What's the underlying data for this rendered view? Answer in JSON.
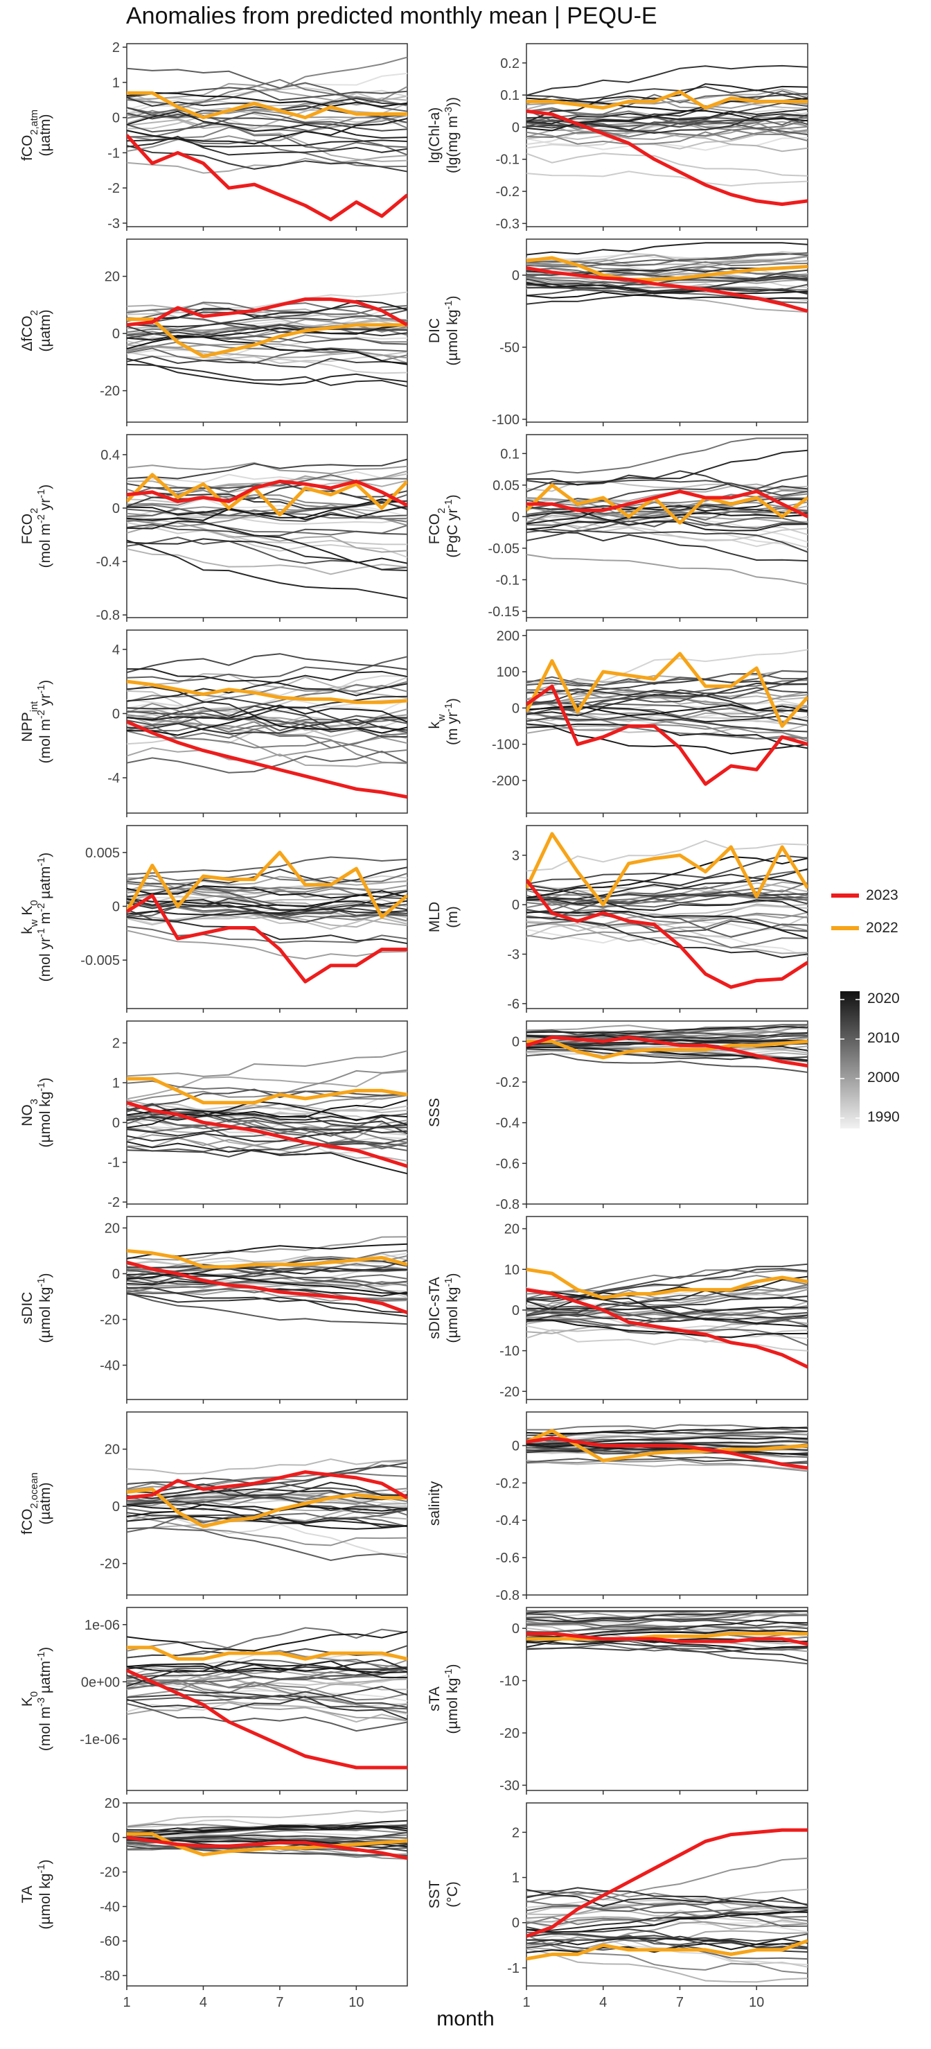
{
  "title": "Anomalies from predicted monthly mean | PEQU-E",
  "xlabel": "month",
  "x_ticks": [
    1,
    4,
    7,
    10
  ],
  "legend": {
    "highlight": [
      {
        "label": "2023",
        "color": "#ee1c1c"
      },
      {
        "label": "2022",
        "color": "#f7a418"
      }
    ],
    "gradient": {
      "labels": [
        "2020",
        "2010",
        "2000",
        "1990"
      ],
      "low_color": "#f2f2f2",
      "high_color": "#111111"
    }
  },
  "chart_data": [
    {
      "name": "fco2atm",
      "ylabel_html": "fCO<tspan baseline-shift='sub' font-size='70%'>2,atm</tspan>",
      "unit_html": "(µatm)",
      "ylim": [
        -3.1,
        2.1
      ],
      "yticks": [
        2,
        1,
        0,
        -1,
        -2,
        -3
      ],
      "s2023": [
        -0.5,
        -1.3,
        -1.0,
        -1.3,
        -2.0,
        -1.9,
        -2.2,
        -2.5,
        -2.9,
        -2.4,
        -2.8,
        -2.2
      ],
      "s2022": [
        0.7,
        0.7,
        0.3,
        0.0,
        0.2,
        0.4,
        0.2,
        0.0,
        0.3,
        0.1,
        0.1,
        0.1
      ],
      "spread": 0.9,
      "type": "line"
    },
    {
      "name": "chla",
      "ylabel_html": "lg(Chl-a)",
      "unit_html": "(lg(mg m<tspan baseline-shift='super' font-size='70%'>-3</tspan>))",
      "ylim": [
        -0.31,
        0.26
      ],
      "yticks": [
        0.2,
        0.1,
        0.0,
        -0.1,
        -0.2,
        -0.3
      ],
      "s2023": [
        0.05,
        0.04,
        0.01,
        -0.02,
        -0.05,
        -0.1,
        -0.14,
        -0.18,
        -0.21,
        -0.23,
        -0.24,
        -0.23
      ],
      "s2022": [
        0.08,
        0.08,
        0.07,
        0.06,
        0.08,
        0.08,
        0.11,
        0.06,
        0.09,
        0.08,
        0.08,
        0.08
      ],
      "spread": 0.09,
      "type": "line"
    },
    {
      "name": "dfco2",
      "ylabel_html": "ΔfCO<tspan baseline-shift='sub' font-size='70%'>2</tspan>",
      "unit_html": "(µatm)",
      "ylim": [
        -31,
        33
      ],
      "yticks": [
        20,
        0,
        -20
      ],
      "s2023": [
        3,
        4,
        9,
        6,
        7,
        8,
        10,
        12,
        12,
        11,
        8,
        3
      ],
      "s2022": [
        5,
        5,
        -3,
        -8,
        -6,
        -4,
        -1,
        1,
        2,
        3,
        3,
        3
      ],
      "spread": 9,
      "type": "line"
    },
    {
      "name": "dic",
      "ylabel_html": "DIC",
      "unit_html": "(µmol kg<tspan baseline-shift='super' font-size='70%'>-1</tspan>)",
      "ylim": [
        -102,
        25
      ],
      "yticks": [
        0,
        -50,
        -100
      ],
      "s2023": [
        5,
        2,
        0,
        -2,
        -3,
        -6,
        -8,
        -10,
        -13,
        -16,
        -20,
        -25
      ],
      "s2022": [
        10,
        12,
        7,
        0,
        -3,
        -3,
        -2,
        0,
        2,
        4,
        5,
        6
      ],
      "spread": 12,
      "type": "line"
    },
    {
      "name": "fco2_mol",
      "ylabel_html": "FCO<tspan baseline-shift='sub' font-size='70%'>2</tspan>",
      "unit_html": "(mol m<tspan baseline-shift='super' font-size='70%'>-2</tspan> yr<tspan baseline-shift='super' font-size='70%'>-1</tspan>)",
      "ylim": [
        -0.82,
        0.55
      ],
      "yticks": [
        0.4,
        0.0,
        -0.4,
        -0.8
      ],
      "s2023": [
        0.1,
        0.12,
        0.05,
        0.08,
        0.05,
        0.15,
        0.2,
        0.18,
        0.15,
        0.2,
        0.12,
        0.02
      ],
      "s2022": [
        0.05,
        0.25,
        0.08,
        0.18,
        0.0,
        0.15,
        -0.05,
        0.15,
        0.1,
        0.18,
        0.0,
        0.2
      ],
      "spread": 0.22,
      "type": "line"
    },
    {
      "name": "fco2_pgc",
      "ylabel_html": "FCO<tspan baseline-shift='sub' font-size='70%'>2</tspan>",
      "unit_html": "(PgC yr<tspan baseline-shift='super' font-size='70%'>-1</tspan>)",
      "ylim": [
        -0.16,
        0.13
      ],
      "yticks": [
        0.1,
        0.05,
        0.0,
        -0.05,
        -0.1,
        -0.15
      ],
      "s2023": [
        0.02,
        0.02,
        0.01,
        0.01,
        0.02,
        0.03,
        0.04,
        0.03,
        0.03,
        0.04,
        0.02,
        0.0
      ],
      "s2022": [
        0.01,
        0.05,
        0.02,
        0.03,
        0.0,
        0.03,
        -0.01,
        0.03,
        0.02,
        0.03,
        0.0,
        0.03
      ],
      "spread": 0.045,
      "type": "line"
    },
    {
      "name": "npp",
      "ylabel_html": "NPP<tspan baseline-shift='sub' font-size='70%'>int</tspan>",
      "unit_html": "(mol m<tspan baseline-shift='super' font-size='70%'>-2</tspan> yr<tspan baseline-shift='super' font-size='70%'>-1</tspan>)",
      "ylim": [
        -6.2,
        5.2
      ],
      "yticks": [
        4,
        0,
        -4
      ],
      "s2023": [
        -0.5,
        -1.2,
        -1.8,
        -2.3,
        -2.7,
        -3.1,
        -3.5,
        -3.9,
        -4.3,
        -4.7,
        -4.9,
        -5.2
      ],
      "s2022": [
        2.0,
        1.8,
        1.5,
        1.2,
        1.5,
        1.3,
        1.0,
        0.9,
        0.9,
        0.7,
        0.7,
        0.8
      ],
      "spread": 2.3,
      "type": "line"
    },
    {
      "name": "kw",
      "ylabel_html": "k<tspan baseline-shift='sub' font-size='70%'>w</tspan>",
      "unit_html": "(m yr<tspan baseline-shift='super' font-size='70%'>-1</tspan>)",
      "ylim": [
        -290,
        215
      ],
      "yticks": [
        200,
        100,
        0,
        -100,
        -200
      ],
      "s2023": [
        10,
        60,
        -100,
        -80,
        -50,
        -50,
        -110,
        -210,
        -160,
        -170,
        -80,
        -100
      ],
      "s2022": [
        -10,
        130,
        -10,
        100,
        90,
        80,
        150,
        60,
        60,
        110,
        -50,
        30
      ],
      "spread": 75,
      "type": "line"
    },
    {
      "name": "kwk0",
      "ylabel_html": "k<tspan baseline-shift='sub' font-size='70%'>w</tspan> K<tspan baseline-shift='sub' font-size='70%'>0</tspan>",
      "unit_html": "(mol yr<tspan baseline-shift='super' font-size='70%'>-1</tspan> m<tspan baseline-shift='super' font-size='70%'>-2</tspan> µatm<tspan baseline-shift='super' font-size='70%'>-1</tspan>)",
      "ylim": [
        -0.0095,
        0.0075
      ],
      "yticks": [
        0.005,
        0.0,
        -0.005
      ],
      "s2023": [
        -0.0005,
        0.001,
        -0.003,
        -0.0025,
        -0.002,
        -0.002,
        -0.004,
        -0.007,
        -0.0055,
        -0.0055,
        -0.004,
        -0.004
      ],
      "s2022": [
        -0.0005,
        0.0038,
        0.0,
        0.0028,
        0.0025,
        0.0025,
        0.005,
        0.002,
        0.002,
        0.0035,
        -0.001,
        0.001
      ],
      "spread": 0.0028,
      "type": "line"
    },
    {
      "name": "mld",
      "ylabel_html": "MLD",
      "unit_html": "(m)",
      "ylim": [
        -6.3,
        4.8
      ],
      "yticks": [
        3,
        0,
        -3,
        -6
      ],
      "s2023": [
        1.5,
        -0.5,
        -1.0,
        -0.5,
        -1.0,
        -1.2,
        -2.5,
        -4.2,
        -5.0,
        -4.6,
        -4.5,
        -3.5
      ],
      "s2022": [
        1.0,
        4.3,
        2.0,
        0.0,
        2.5,
        2.8,
        3.0,
        2.0,
        3.5,
        0.5,
        3.5,
        1.0
      ],
      "spread": 1.7,
      "type": "line"
    },
    {
      "name": "no3",
      "ylabel_html": "NO<tspan baseline-shift='sub' font-size='70%'>3</tspan>",
      "unit_html": "(µmol kg<tspan baseline-shift='super' font-size='70%'>-1</tspan>)",
      "ylim": [
        -2.05,
        2.55
      ],
      "yticks": [
        2,
        1,
        0,
        -1,
        -2
      ],
      "s2023": [
        0.5,
        0.3,
        0.2,
        0.0,
        -0.1,
        -0.2,
        -0.35,
        -0.5,
        -0.6,
        -0.7,
        -0.9,
        -1.1
      ],
      "s2022": [
        1.1,
        1.1,
        0.8,
        0.5,
        0.5,
        0.5,
        0.7,
        0.6,
        0.7,
        0.8,
        0.8,
        0.7
      ],
      "spread": 0.8,
      "type": "line"
    },
    {
      "name": "sss",
      "ylabel_html": "SSS",
      "unit_html": "",
      "ylim": [
        -0.8,
        0.1
      ],
      "yticks": [
        0.0,
        -0.2,
        -0.4,
        -0.6,
        -0.8
      ],
      "s2023": [
        -0.02,
        0.02,
        0.01,
        0.0,
        0.02,
        0.0,
        -0.02,
        -0.02,
        -0.04,
        -0.07,
        -0.1,
        -0.12
      ],
      "s2022": [
        0.0,
        0.0,
        -0.05,
        -0.08,
        -0.05,
        -0.04,
        -0.04,
        -0.04,
        -0.02,
        -0.02,
        -0.01,
        0.0
      ],
      "spread": 0.06,
      "type": "line"
    },
    {
      "name": "sdic",
      "ylabel_html": "sDIC",
      "unit_html": "(µmol kg<tspan baseline-shift='super' font-size='70%'>-1</tspan>)",
      "ylim": [
        -55,
        25
      ],
      "yticks": [
        20,
        0,
        -20,
        -40
      ],
      "s2023": [
        5,
        2,
        0,
        -3,
        -5,
        -6,
        -8,
        -9,
        -10,
        -11,
        -13,
        -17
      ],
      "s2022": [
        10,
        9,
        7,
        3,
        3,
        4,
        4,
        4,
        5,
        6,
        7,
        4
      ],
      "spread": 9,
      "type": "line"
    },
    {
      "name": "sdic_sta",
      "ylabel_html": "sDIC-sTA",
      "unit_html": "(µmol kg<tspan baseline-shift='super' font-size='70%'>-1</tspan>)",
      "ylim": [
        -22,
        23
      ],
      "yticks": [
        20,
        10,
        0,
        -10,
        -20
      ],
      "s2023": [
        5,
        4,
        2,
        0,
        -3,
        -4,
        -5,
        -6,
        -8,
        -9,
        -11,
        -14
      ],
      "s2022": [
        10,
        9,
        5,
        3,
        4,
        4,
        5,
        5,
        5,
        7,
        8,
        7
      ],
      "spread": 6,
      "type": "line"
    },
    {
      "name": "fco2ocean",
      "ylabel_html": "fCO<tspan baseline-shift='sub' font-size='70%'>2,ocean</tspan>",
      "unit_html": "(µatm)",
      "ylim": [
        -31,
        33
      ],
      "yticks": [
        20,
        0,
        -20
      ],
      "s2023": [
        3,
        4,
        9,
        6,
        7,
        8,
        10,
        12,
        11,
        10,
        8,
        3
      ],
      "s2022": [
        5,
        6,
        -2,
        -7,
        -5,
        -4,
        -1,
        1,
        3,
        4,
        3,
        3
      ],
      "spread": 9,
      "type": "line"
    },
    {
      "name": "salinity",
      "ylabel_html": "salinity",
      "unit_html": "",
      "ylim": [
        -0.8,
        0.18
      ],
      "yticks": [
        0.0,
        -0.2,
        -0.4,
        -0.6,
        -0.8
      ],
      "s2023": [
        0.02,
        0.04,
        0.02,
        0.0,
        0.0,
        0.0,
        0.0,
        -0.02,
        -0.04,
        -0.07,
        -0.1,
        -0.12
      ],
      "s2022": [
        0.02,
        0.08,
        0.0,
        -0.08,
        -0.06,
        -0.04,
        -0.03,
        -0.03,
        -0.02,
        -0.02,
        -0.01,
        0.0
      ],
      "spread": 0.06,
      "type": "line"
    },
    {
      "name": "k0",
      "ylabel_html": "K<tspan baseline-shift='sub' font-size='70%'>0</tspan>",
      "unit_html": "(mol m<tspan baseline-shift='super' font-size='70%'>-3</tspan> µatm<tspan baseline-shift='super' font-size='70%'>-1</tspan>)",
      "ylim": [
        -1.9e-06,
        1.3e-06
      ],
      "yticks": [
        1e-06,
        0,
        -1e-06
      ],
      "ytick_labels": [
        "1e-06",
        "0e+00",
        "-1e-06"
      ],
      "s2023": [
        2e-07,
        0,
        -2e-07,
        -4e-07,
        -7e-07,
        -9e-07,
        -1.1e-06,
        -1.3e-06,
        -1.4e-06,
        -1.5e-06,
        -1.5e-06,
        -1.5e-06
      ],
      "s2022": [
        6e-07,
        6e-07,
        4e-07,
        4e-07,
        5e-07,
        5e-07,
        5e-07,
        4e-07,
        5e-07,
        5e-07,
        5e-07,
        4e-07
      ],
      "spread": 5e-07,
      "type": "line"
    },
    {
      "name": "sta",
      "ylabel_html": "sTA",
      "unit_html": "(µmol kg<tspan baseline-shift='super' font-size='70%'>-1</tspan>)",
      "ylim": [
        -31,
        4
      ],
      "yticks": [
        0,
        -10,
        -20,
        -30
      ],
      "s2023": [
        -1,
        -1,
        -1.5,
        -2,
        -2,
        -2,
        -2.5,
        -2.5,
        -2.5,
        -2,
        -2,
        -3
      ],
      "s2022": [
        -2,
        -2,
        -2,
        -2,
        -2,
        -1.5,
        -1.5,
        -1.5,
        -1,
        -1,
        -1,
        -1
      ],
      "spread": 3,
      "type": "line"
    },
    {
      "name": "ta",
      "ylabel_html": "TA",
      "unit_html": "(µmol kg<tspan baseline-shift='super' font-size='70%'>-1</tspan>)",
      "ylim": [
        -86,
        20
      ],
      "yticks": [
        20,
        0,
        -20,
        -40,
        -60,
        -80
      ],
      "s2023": [
        0,
        -2,
        -4,
        -5,
        -5,
        -4,
        -3,
        -3,
        -5,
        -7,
        -9,
        -12
      ],
      "s2022": [
        2,
        2,
        -5,
        -10,
        -8,
        -7,
        -6,
        -6,
        -5,
        -4,
        -3,
        -2
      ],
      "spread": 7,
      "type": "line"
    },
    {
      "name": "sst",
      "ylabel_html": "SST",
      "unit_html": "(°C)",
      "ylim": [
        -1.4,
        2.65
      ],
      "yticks": [
        2,
        1,
        0,
        -1
      ],
      "s2023": [
        -0.3,
        -0.1,
        0.3,
        0.6,
        0.9,
        1.2,
        1.5,
        1.8,
        1.95,
        2.0,
        2.05,
        2.05
      ],
      "s2022": [
        -0.8,
        -0.7,
        -0.7,
        -0.5,
        -0.6,
        -0.6,
        -0.6,
        -0.6,
        -0.7,
        -0.6,
        -0.6,
        -0.4
      ],
      "spread": 0.6,
      "type": "line"
    }
  ]
}
